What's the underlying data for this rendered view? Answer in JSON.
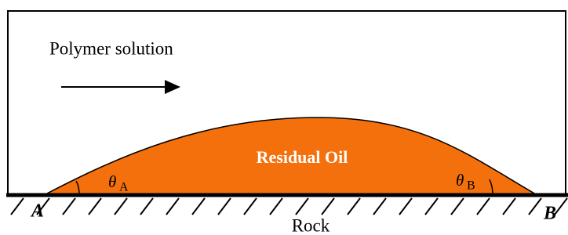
{
  "flow_label": "Polymer solution",
  "oil_label": "Residual Oil",
  "angle_a": {
    "symbol": "θ",
    "subscript": "A"
  },
  "angle_b": {
    "symbol": "θ",
    "subscript": "B"
  },
  "point_a": "A",
  "point_b": "B",
  "surface_label": "Rock"
}
